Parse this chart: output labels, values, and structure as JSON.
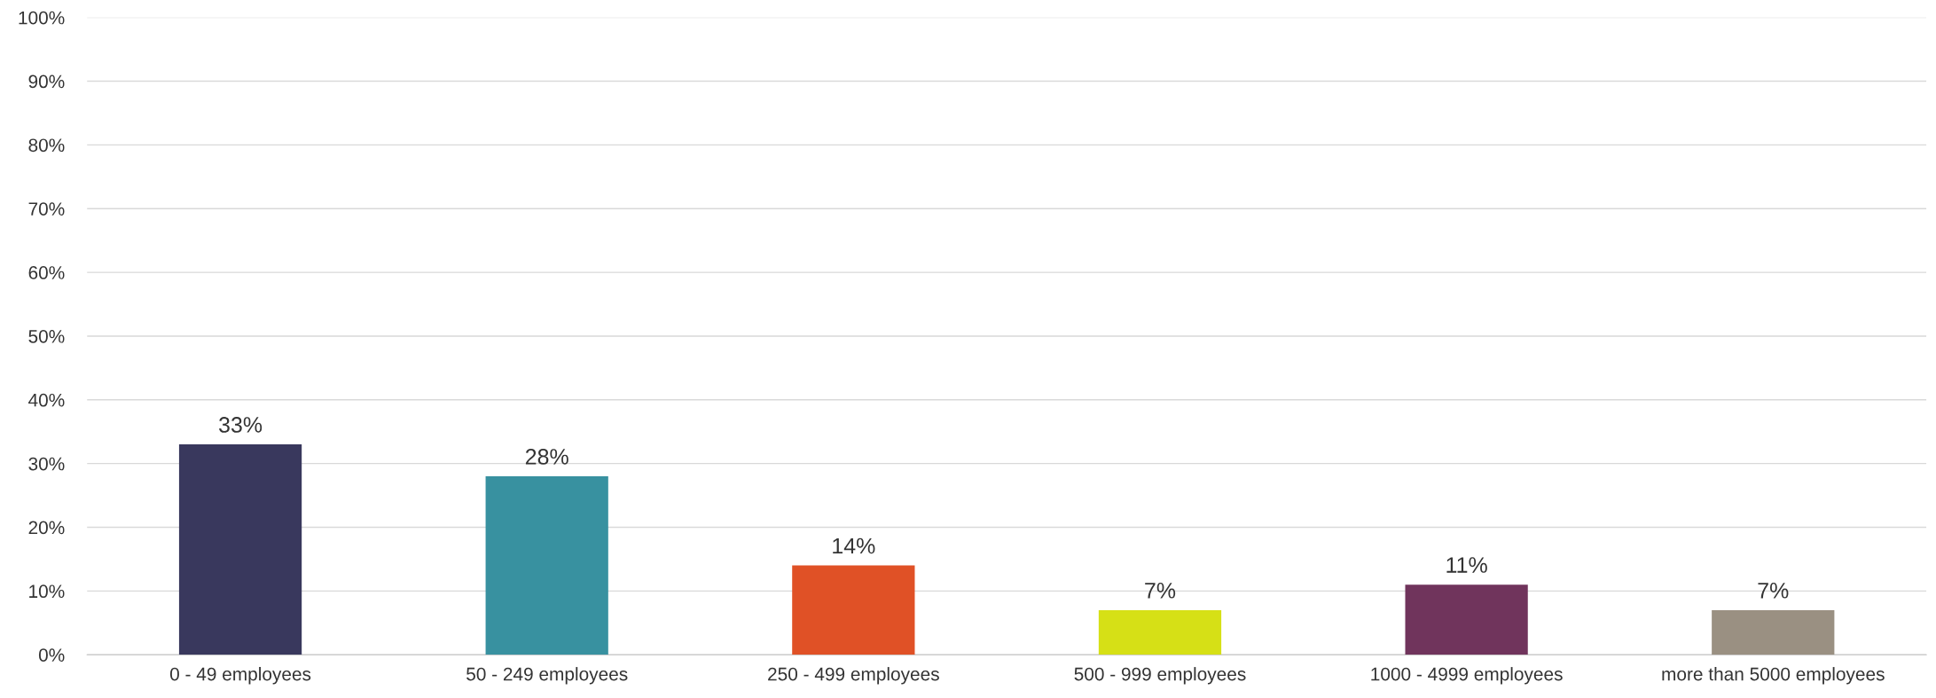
{
  "chart_data": {
    "type": "bar",
    "categories": [
      "0 - 49 employees",
      "50 - 249 employees",
      "250 - 499 employees",
      "500 - 999 employees",
      "1000 - 4999 employees",
      "more than 5000 employees"
    ],
    "values": [
      33,
      28,
      14,
      7,
      11,
      7
    ],
    "value_labels": [
      "33%",
      "28%",
      "14%",
      "7%",
      "11%",
      "7%"
    ],
    "colors": [
      "#39385d",
      "#3891a0",
      "#e05126",
      "#d6e016",
      "#70345c",
      "#9a9082"
    ],
    "ylim": [
      0,
      100
    ],
    "yticks": [
      {
        "value": 0,
        "label": "0%"
      },
      {
        "value": 10,
        "label": "10%"
      },
      {
        "value": 20,
        "label": "20%"
      },
      {
        "value": 30,
        "label": "30%"
      },
      {
        "value": 40,
        "label": "40%"
      },
      {
        "value": 50,
        "label": "50%"
      },
      {
        "value": 60,
        "label": "60%"
      },
      {
        "value": 70,
        "label": "70%"
      },
      {
        "value": 80,
        "label": "80%"
      },
      {
        "value": 90,
        "label": "90%"
      },
      {
        "value": 100,
        "label": "100%"
      }
    ],
    "grid": "y"
  }
}
